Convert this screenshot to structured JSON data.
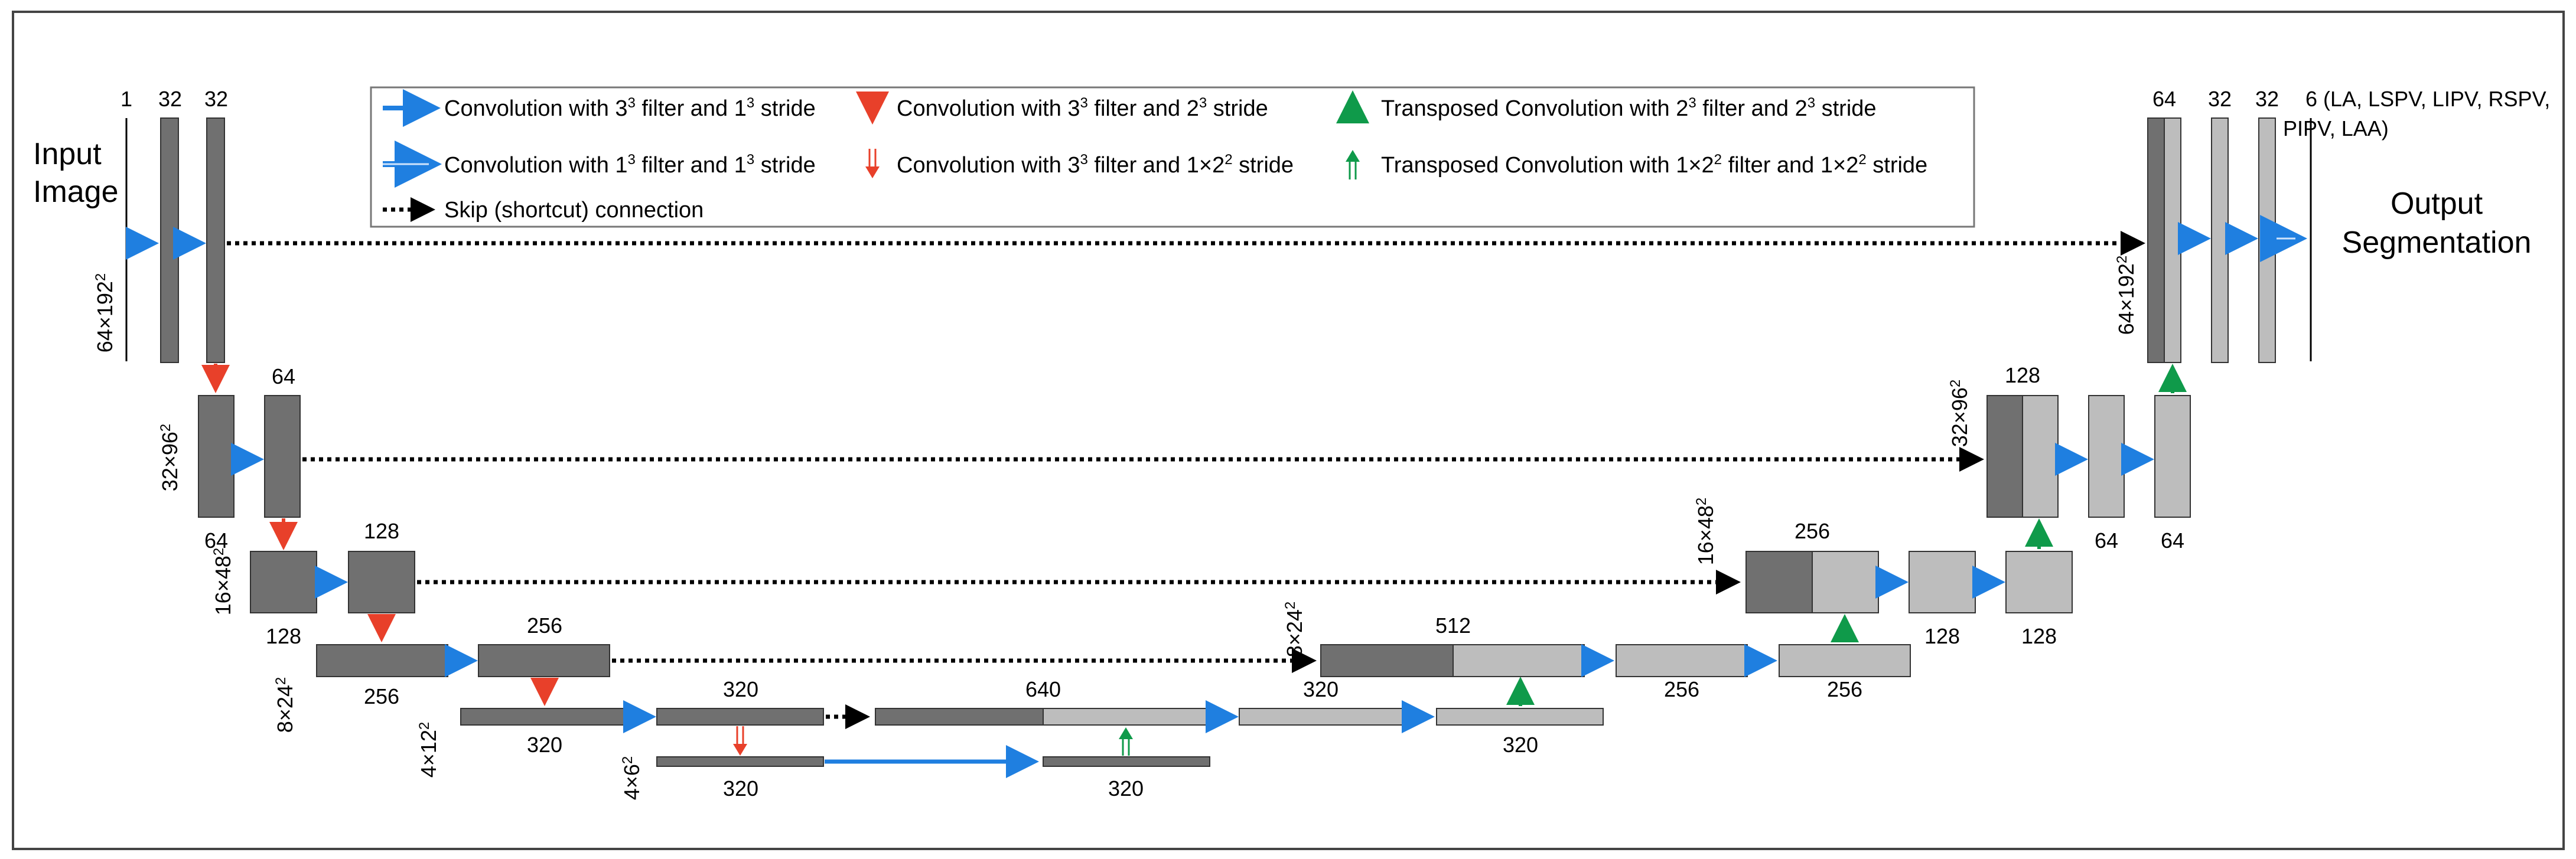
{
  "colors": {
    "dark": "#707070",
    "light": "#bdbdbd",
    "blue": "#1f7fe0",
    "red": "#e8402a",
    "green": "#0f9a4a",
    "outline": "#333333"
  },
  "diagram": {
    "input_label": [
      "Input",
      "Image"
    ],
    "output_label": [
      "Output",
      "Segmentation"
    ],
    "output_channels": [
      "6 (LA, LSPV, LIPV, RSPV,",
      "PIPV, LAA)"
    ],
    "legend": {
      "row1": [
        {
          "icon": "blue-arrow-icon",
          "pre": "Convolution with 3",
          "sup1": "3",
          "mid": " filter and 1",
          "sup2": "3",
          "post": " stride"
        },
        {
          "icon": "red-down-arrow-icon",
          "pre": "Convolution with 3",
          "sup1": "3",
          "mid": " filter and 2",
          "sup2": "3",
          "post": " stride"
        },
        {
          "icon": "green-up-arrow-icon",
          "pre": "Transposed Convolution with 2",
          "sup1": "3",
          "mid": " filter and 2",
          "sup2": "3",
          "post": " stride"
        }
      ],
      "row2": [
        {
          "icon": "light-blue-arrow-icon",
          "pre": "Convolution with 1",
          "sup1": "3",
          "mid": " filter and 1",
          "sup2": "3",
          "post": " stride"
        },
        {
          "icon": "red-double-arrow-icon",
          "pre": "Convolution with 3",
          "sup1": "3",
          "mid": " filter and 1×2",
          "sup2": "2",
          "post": " stride"
        },
        {
          "icon": "green-double-arrow-icon",
          "pre": "Transposed Convolution with 1×2",
          "sup1": "2",
          "mid": " filter and 1×2",
          "sup2": "2",
          "post": " stride"
        }
      ],
      "skip": "Skip (shortcut) connection"
    },
    "encoder_labels": {
      "l1": [
        "1",
        "32",
        "32"
      ],
      "l2_top": "64",
      "l2_bottom": "64",
      "l3_top": "128",
      "l3_bottom": "128",
      "l4_top": "256",
      "l4_bottom": "256",
      "l5_top": "320",
      "l5_bottom": "320",
      "l6_bottom": "320",
      "concat_top": "640",
      "bottleneck_up_bottom": "320"
    },
    "decoder_labels": {
      "l5_bottom": [
        "320",
        "320"
      ],
      "l4_top": "512",
      "l4_bottom": [
        "320",
        "256",
        "256"
      ],
      "l3_top": "256",
      "l3_bottom": [
        "128",
        "128"
      ],
      "l2_top": "128",
      "l2_bottom": [
        "64",
        "64"
      ],
      "l1_top": [
        "64",
        "32",
        "32"
      ]
    },
    "sizes": {
      "s1": "64×192",
      "s1_sup": "2",
      "s2": "32×96",
      "s2_sup": "2",
      "s3": "16×48",
      "s3_sup": "2",
      "s4": "8×24",
      "s4_sup": "2",
      "s5": "4×12",
      "s5_sup": "2",
      "s6": "4×6",
      "s6_sup": "2"
    }
  }
}
